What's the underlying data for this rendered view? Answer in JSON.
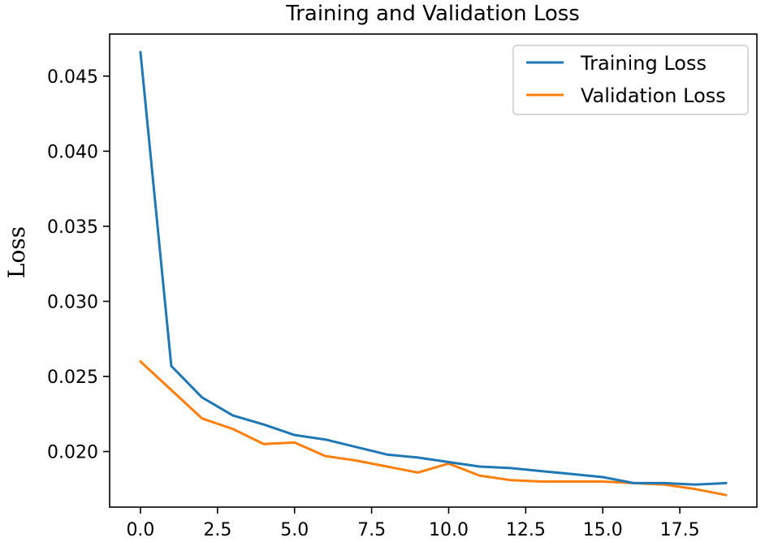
{
  "chart_data": {
    "type": "line",
    "title": "Training and Validation Loss",
    "xlabel": "",
    "ylabel": "Loss",
    "xlim": [
      -1,
      20
    ],
    "ylim": [
      0.0163,
      0.0478
    ],
    "x_ticks": [
      0.0,
      2.5,
      5.0,
      7.5,
      10.0,
      12.5,
      15.0,
      17.5
    ],
    "x_tick_labels": [
      "0.0",
      "2.5",
      "5.0",
      "7.5",
      "10.0",
      "12.5",
      "15.0",
      "17.5"
    ],
    "y_ticks": [
      0.02,
      0.025,
      0.03,
      0.035,
      0.04,
      0.045
    ],
    "y_tick_labels": [
      "0.020",
      "0.025",
      "0.030",
      "0.035",
      "0.040",
      "0.045"
    ],
    "grid": false,
    "legend_position": "top-right",
    "x": [
      0,
      1,
      2,
      3,
      4,
      5,
      6,
      7,
      8,
      9,
      10,
      11,
      12,
      13,
      14,
      15,
      16,
      17,
      18,
      19
    ],
    "series": [
      {
        "name": "Training Loss",
        "color": "#1f77b4",
        "values": [
          0.0466,
          0.0257,
          0.0236,
          0.0224,
          0.0218,
          0.0211,
          0.0208,
          0.0203,
          0.0198,
          0.0196,
          0.0193,
          0.019,
          0.0189,
          0.0187,
          0.0185,
          0.0183,
          0.0179,
          0.0179,
          0.0178,
          0.0179
        ]
      },
      {
        "name": "Validation Loss",
        "color": "#ff7f0e",
        "values": [
          0.026,
          0.0241,
          0.0222,
          0.0215,
          0.0205,
          0.0206,
          0.0197,
          0.0194,
          0.019,
          0.0186,
          0.0192,
          0.0184,
          0.0181,
          0.018,
          0.018,
          0.018,
          0.0179,
          0.0178,
          0.0175,
          0.0171
        ]
      }
    ]
  }
}
